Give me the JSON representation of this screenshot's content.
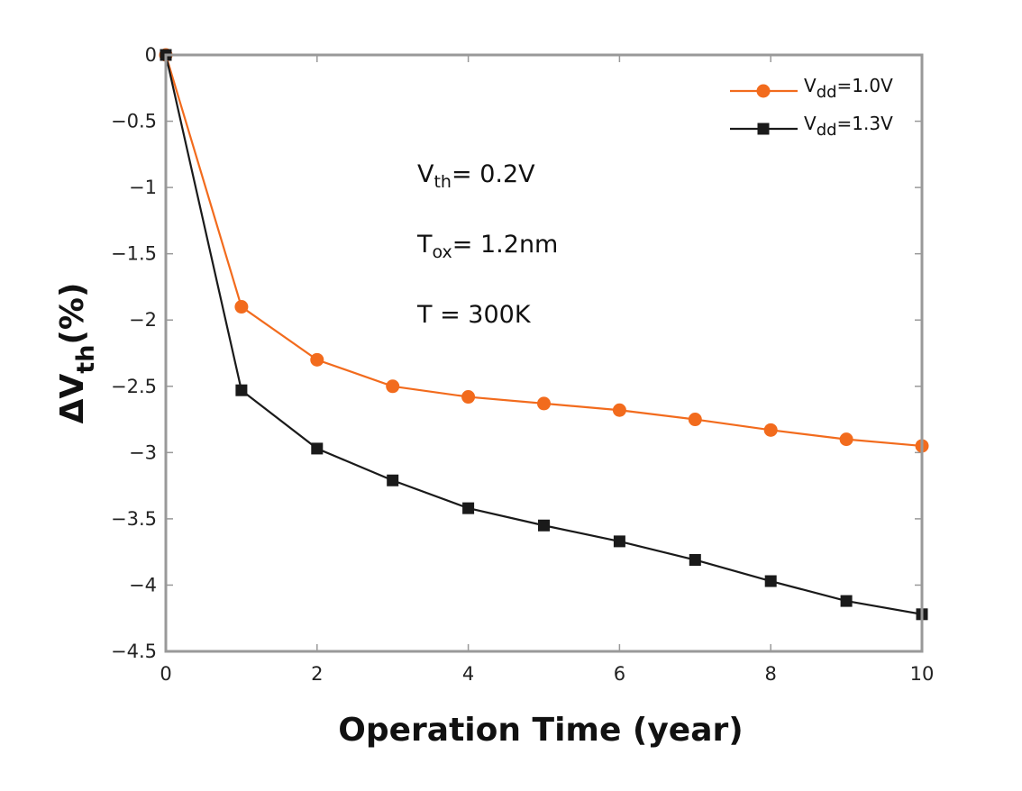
{
  "chart_data": {
    "type": "line",
    "xlabel": "Operation Time (year)",
    "ylabel": {
      "base": "ΔV",
      "sub": "th",
      "suffix": "(%)"
    },
    "xlim": [
      0,
      10
    ],
    "ylim": [
      -4.5,
      0
    ],
    "xticks": [
      0,
      2,
      4,
      6,
      8,
      10
    ],
    "yticks": [
      0,
      -0.5,
      -1,
      -1.5,
      -2,
      -2.5,
      -3,
      -3.5,
      -4,
      -4.5
    ],
    "ytick_labels": [
      "0",
      "−0.5",
      "−1",
      "−1.5",
      "−2",
      "−2.5",
      "−3",
      "−3.5",
      "−4",
      "−4.5"
    ],
    "grid": false,
    "legend_position": "top-right",
    "x": [
      0,
      1,
      2,
      3,
      4,
      5,
      6,
      7,
      8,
      9,
      10
    ],
    "series": [
      {
        "name": {
          "base": "V",
          "sub": "dd",
          "suffix": "=1.0V"
        },
        "color": "#f26b1d",
        "marker": "circle",
        "values": [
          0,
          -1.9,
          -2.3,
          -2.5,
          -2.58,
          -2.63,
          -2.68,
          -2.75,
          -2.83,
          -2.9,
          -2.95
        ]
      },
      {
        "name": {
          "base": "V",
          "sub": "dd",
          "suffix": "=1.3V"
        },
        "color": "#1a1a1a",
        "marker": "square",
        "values": [
          0,
          -2.53,
          -2.97,
          -3.21,
          -3.42,
          -3.55,
          -3.67,
          -3.81,
          -3.97,
          -4.12,
          -4.22
        ]
      }
    ],
    "annotations": [
      {
        "base": "V",
        "sub": "th",
        "suffix": "= 0.2V"
      },
      {
        "base": "T",
        "sub": "ox",
        "suffix": "= 1.2nm"
      },
      {
        "base": "T = 300K",
        "sub": "",
        "suffix": ""
      }
    ]
  }
}
